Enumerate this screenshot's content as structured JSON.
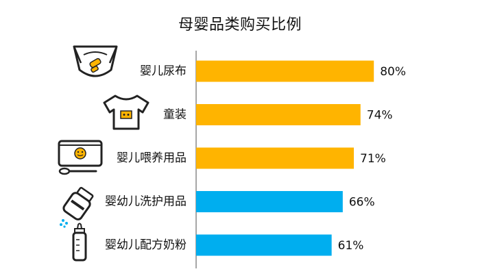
{
  "chart_data": {
    "type": "bar",
    "orientation": "horizontal",
    "title": "母婴品类购买比例",
    "categories": [
      "婴儿尿布",
      "童装",
      "婴儿喂养用品",
      "婴幼儿洗护用品",
      "婴幼儿配方奶粉"
    ],
    "values": [
      80,
      74,
      71,
      66,
      61
    ],
    "value_labels": [
      "80%",
      "74%",
      "71%",
      "66%",
      "61%"
    ],
    "xlim": [
      0,
      100
    ],
    "grid": false,
    "colors": [
      "#FFB400",
      "#FFB400",
      "#FFB400",
      "#00AEEF",
      "#00AEEF"
    ],
    "icons": [
      "diaper-icon",
      "onesie-icon",
      "feeding-bowl-icon",
      "lotion-bottle-icon",
      "baby-bottle-icon"
    ]
  }
}
